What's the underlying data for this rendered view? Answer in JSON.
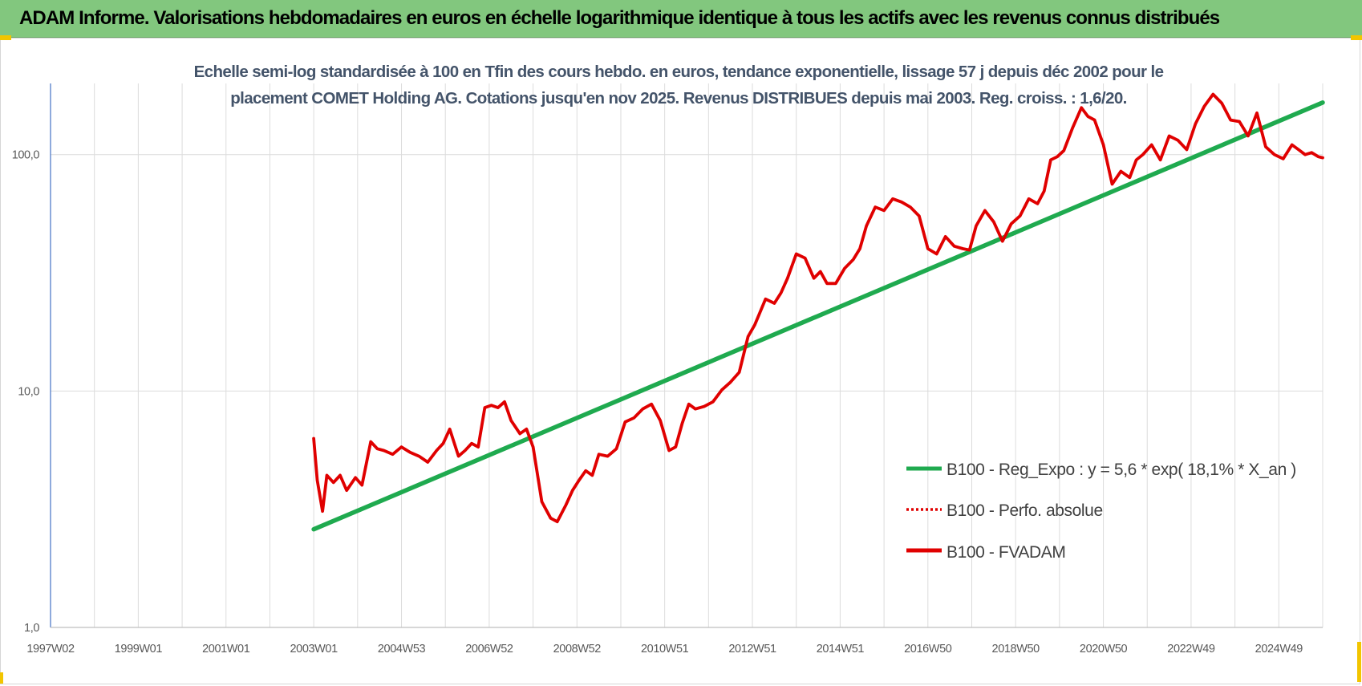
{
  "banner": {
    "title": "ADAM Informe. Valorisations hebdomadaires en euros en échelle logarithmique identique à tous les actifs avec les revenus connus distribués"
  },
  "colors": {
    "banner_bg": "#82c77e",
    "trend": "#1faa4f",
    "fvadam": "#e00000",
    "perfo": "#e00000",
    "subtitle": "#44546a",
    "corner_marks": "#f2c500"
  },
  "chart_data": {
    "type": "line",
    "title_lines": [
      "Echelle semi-log standardisée à 100 en Tfin des cours hebdo. en euros, tendance exponentielle, lissage 57 j depuis déc 2002 pour le",
      "placement COMET Holding AG. Cotations jusqu'en nov 2025. Revenus DISTRIBUES depuis mai 2003. Reg. croiss. : 1,6/20."
    ],
    "y_scale": "log",
    "ylim": [
      1,
      200
    ],
    "y_ticks": [
      {
        "value": 1,
        "label": "1,0"
      },
      {
        "value": 10,
        "label": "10,0"
      },
      {
        "value": 100,
        "label": "100,0"
      }
    ],
    "x_unit": "year",
    "xlim": [
      1997.0,
      2026.0
    ],
    "x_ticks": [
      {
        "value": 1997.0,
        "label": "1997W02"
      },
      {
        "value": 1999.0,
        "label": "1999W01"
      },
      {
        "value": 2001.0,
        "label": "2001W01"
      },
      {
        "value": 2003.0,
        "label": "2003W01"
      },
      {
        "value": 2005.0,
        "label": "2004W53"
      },
      {
        "value": 2007.0,
        "label": "2006W52"
      },
      {
        "value": 2009.0,
        "label": "2008W52"
      },
      {
        "value": 2011.0,
        "label": "2010W51"
      },
      {
        "value": 2013.0,
        "label": "2012W51"
      },
      {
        "value": 2015.0,
        "label": "2014W51"
      },
      {
        "value": 2017.0,
        "label": "2016W50"
      },
      {
        "value": 2019.0,
        "label": "2018W50"
      },
      {
        "value": 2021.0,
        "label": "2020W50"
      },
      {
        "value": 2023.0,
        "label": "2022W49"
      },
      {
        "value": 2025.0,
        "label": "2024W49"
      }
    ],
    "grid": "vertical-and-horizontal",
    "legend_position": "right-middle",
    "series": [
      {
        "name": "B100 - Reg_Expo : y = 5,6 * exp( 18,1% *  X_an )",
        "style": "solid",
        "color": "#1faa4f",
        "x": [
          2003.0,
          2026.0
        ],
        "y": [
          2.6,
          166
        ]
      },
      {
        "name": "B100 - Perfo. absolue",
        "style": "dotted",
        "color": "#e00000",
        "x": [],
        "y": []
      },
      {
        "name": "B100 - FVADAM",
        "style": "solid",
        "color": "#e00000",
        "x": [
          2003.0,
          2003.08,
          2003.2,
          2003.3,
          2003.45,
          2003.6,
          2003.75,
          2003.95,
          2004.1,
          2004.3,
          2004.45,
          2004.6,
          2004.8,
          2005.0,
          2005.2,
          2005.4,
          2005.6,
          2005.8,
          2005.95,
          2006.1,
          2006.3,
          2006.45,
          2006.6,
          2006.75,
          2006.9,
          2007.05,
          2007.2,
          2007.35,
          2007.5,
          2007.7,
          2007.85,
          2008.0,
          2008.2,
          2008.4,
          2008.55,
          2008.75,
          2008.9,
          2009.05,
          2009.2,
          2009.35,
          2009.5,
          2009.7,
          2009.9,
          2010.1,
          2010.3,
          2010.5,
          2010.7,
          2010.9,
          2011.1,
          2011.25,
          2011.4,
          2011.55,
          2011.7,
          2011.9,
          2012.1,
          2012.3,
          2012.5,
          2012.7,
          2012.9,
          2013.05,
          2013.15,
          2013.3,
          2013.5,
          2013.65,
          2013.8,
          2014.0,
          2014.2,
          2014.4,
          2014.55,
          2014.7,
          2014.9,
          2015.1,
          2015.3,
          2015.45,
          2015.6,
          2015.8,
          2016.0,
          2016.2,
          2016.4,
          2016.6,
          2016.8,
          2017.0,
          2017.2,
          2017.4,
          2017.6,
          2017.8,
          2017.95,
          2018.1,
          2018.3,
          2018.5,
          2018.7,
          2018.9,
          2019.1,
          2019.3,
          2019.5,
          2019.65,
          2019.8,
          2019.95,
          2020.1,
          2020.3,
          2020.5,
          2020.65,
          2020.8,
          2021.0,
          2021.2,
          2021.4,
          2021.6,
          2021.75,
          2021.9,
          2022.1,
          2022.3,
          2022.5,
          2022.7,
          2022.9,
          2023.1,
          2023.3,
          2023.5,
          2023.7,
          2023.9,
          2024.1,
          2024.3,
          2024.5,
          2024.7,
          2024.9,
          2025.1,
          2025.3,
          2025.45,
          2025.6,
          2025.75,
          2025.9,
          2026.0
        ],
        "y": [
          6.3,
          4.2,
          3.1,
          4.4,
          4.1,
          4.4,
          3.8,
          4.3,
          4.0,
          6.1,
          5.7,
          5.6,
          5.4,
          5.8,
          5.5,
          5.3,
          5.0,
          5.6,
          6.0,
          6.9,
          5.3,
          5.6,
          6.0,
          5.8,
          8.5,
          8.7,
          8.5,
          9.0,
          7.5,
          6.6,
          6.9,
          5.8,
          3.4,
          2.9,
          2.8,
          3.3,
          3.8,
          4.2,
          4.6,
          4.4,
          5.4,
          5.3,
          5.7,
          7.4,
          7.7,
          8.4,
          8.8,
          7.5,
          5.6,
          5.8,
          7.3,
          8.8,
          8.4,
          8.6,
          9.0,
          10.1,
          10.9,
          12.0,
          17.0,
          19.0,
          21.0,
          24.5,
          23.5,
          26.0,
          30.0,
          38.0,
          36.5,
          30.0,
          32.0,
          28.5,
          28.5,
          33.0,
          36.0,
          40.0,
          50.0,
          60.0,
          58.0,
          65.0,
          63.0,
          60.0,
          55.0,
          40.0,
          38.0,
          45.0,
          41.0,
          40.0,
          39.5,
          50.0,
          58.0,
          52.0,
          43.0,
          51.0,
          55.0,
          65.0,
          62.0,
          70.0,
          95.0,
          98.0,
          104.0,
          130.0,
          158.0,
          145.0,
          140.0,
          110.0,
          75.0,
          85.0,
          80.0,
          95.0,
          100.0,
          110.0,
          95.0,
          120.0,
          115.0,
          105.0,
          135.0,
          160.0,
          180.0,
          165.0,
          140.0,
          138.0,
          120.0,
          150.0,
          108.0,
          100.0,
          96.0,
          110.0,
          105.0,
          100.0,
          102.0,
          98.0,
          97.0
        ]
      }
    ]
  }
}
